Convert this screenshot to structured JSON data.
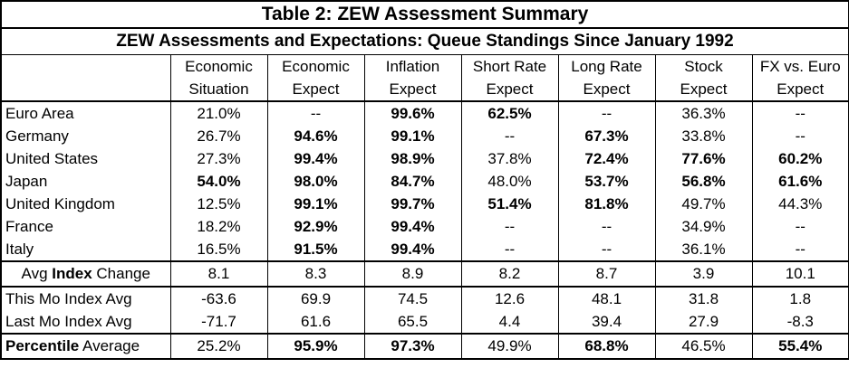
{
  "title": "Table 2: ZEW Assessment Summary",
  "subtitle": "ZEW Assessments and Expectations: Queue Standings Since January 1992",
  "columns": [
    {
      "line1": "Economic",
      "line2": "Situation"
    },
    {
      "line1": "Economic",
      "line2": "Expect"
    },
    {
      "line1": "Inflation",
      "line2": "Expect"
    },
    {
      "line1": "Short Rate",
      "line2": "Expect"
    },
    {
      "line1": "Long Rate",
      "line2": "Expect"
    },
    {
      "line1": "Stock",
      "line2": "Expect"
    },
    {
      "line1": "FX vs. Euro",
      "line2": "Expect"
    }
  ],
  "rows": [
    {
      "label": "Euro Area",
      "cells": [
        {
          "v": "21.0%",
          "bold": false
        },
        {
          "v": "--",
          "bold": false
        },
        {
          "v": "99.6%",
          "bold": true
        },
        {
          "v": "62.5%",
          "bold": true
        },
        {
          "v": "--",
          "bold": false
        },
        {
          "v": "36.3%",
          "bold": false
        },
        {
          "v": "--",
          "bold": false
        }
      ]
    },
    {
      "label": "Germany",
      "cells": [
        {
          "v": "26.7%",
          "bold": false
        },
        {
          "v": "94.6%",
          "bold": true
        },
        {
          "v": "99.1%",
          "bold": true
        },
        {
          "v": "--",
          "bold": false
        },
        {
          "v": "67.3%",
          "bold": true
        },
        {
          "v": "33.8%",
          "bold": false
        },
        {
          "v": "--",
          "bold": false
        }
      ]
    },
    {
      "label": "United States",
      "cells": [
        {
          "v": "27.3%",
          "bold": false
        },
        {
          "v": "99.4%",
          "bold": true
        },
        {
          "v": "98.9%",
          "bold": true
        },
        {
          "v": "37.8%",
          "bold": false
        },
        {
          "v": "72.4%",
          "bold": true
        },
        {
          "v": "77.6%",
          "bold": true
        },
        {
          "v": "60.2%",
          "bold": true
        }
      ]
    },
    {
      "label": "Japan",
      "cells": [
        {
          "v": "54.0%",
          "bold": true
        },
        {
          "v": "98.0%",
          "bold": true
        },
        {
          "v": "84.7%",
          "bold": true
        },
        {
          "v": "48.0%",
          "bold": false
        },
        {
          "v": "53.7%",
          "bold": true
        },
        {
          "v": "56.8%",
          "bold": true
        },
        {
          "v": "61.6%",
          "bold": true
        }
      ]
    },
    {
      "label": "United Kingdom",
      "cells": [
        {
          "v": "12.5%",
          "bold": false
        },
        {
          "v": "99.1%",
          "bold": true
        },
        {
          "v": "99.7%",
          "bold": true
        },
        {
          "v": "51.4%",
          "bold": true
        },
        {
          "v": "81.8%",
          "bold": true
        },
        {
          "v": "49.7%",
          "bold": false
        },
        {
          "v": "44.3%",
          "bold": false
        }
      ]
    },
    {
      "label": "France",
      "cells": [
        {
          "v": "18.2%",
          "bold": false
        },
        {
          "v": "92.9%",
          "bold": true
        },
        {
          "v": "99.4%",
          "bold": true
        },
        {
          "v": "--",
          "bold": false
        },
        {
          "v": "--",
          "bold": false
        },
        {
          "v": "34.9%",
          "bold": false
        },
        {
          "v": "--",
          "bold": false
        }
      ]
    },
    {
      "label": "Italy",
      "cells": [
        {
          "v": "16.5%",
          "bold": false
        },
        {
          "v": "91.5%",
          "bold": true
        },
        {
          "v": "99.4%",
          "bold": true
        },
        {
          "v": "--",
          "bold": false
        },
        {
          "v": "--",
          "bold": false
        },
        {
          "v": "36.1%",
          "bold": false
        },
        {
          "v": "--",
          "bold": false
        }
      ]
    }
  ],
  "avg_index": {
    "label_pre": "Avg ",
    "label_bold": "Index",
    "label_post": " Change",
    "values": [
      "8.1",
      "8.3",
      "8.9",
      "8.2",
      "8.7",
      "3.9",
      "10.1"
    ]
  },
  "this_mo": {
    "label": "This Mo Index Avg",
    "values": [
      "-63.6",
      "69.9",
      "74.5",
      "12.6",
      "48.1",
      "31.8",
      "1.8"
    ]
  },
  "last_mo": {
    "label": "Last Mo Index Avg",
    "values": [
      "-71.7",
      "61.6",
      "65.5",
      "4.4",
      "39.4",
      "27.9",
      "-8.3"
    ]
  },
  "percentile": {
    "label_bold": "Percentile",
    "label_post": " Average",
    "cells": [
      {
        "v": "25.2%",
        "bold": false
      },
      {
        "v": "95.9%",
        "bold": true
      },
      {
        "v": "97.3%",
        "bold": true
      },
      {
        "v": "49.9%",
        "bold": false
      },
      {
        "v": "68.8%",
        "bold": true
      },
      {
        "v": "46.5%",
        "bold": false
      },
      {
        "v": "55.4%",
        "bold": true
      }
    ]
  }
}
